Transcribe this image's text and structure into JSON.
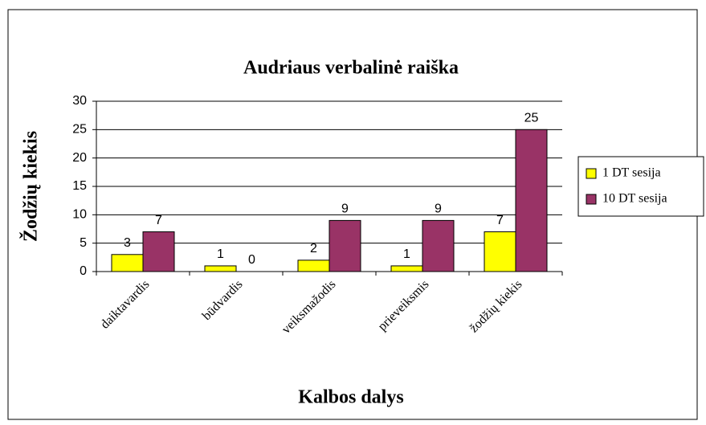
{
  "chart_data": {
    "type": "bar",
    "title": "Audriaus verbalinė raiška",
    "x_label": "Kalbos dalys",
    "y_label": "Žodžių kiekis",
    "categories": [
      "daiktavardis",
      "būdvardis",
      "veiksmažodis",
      "prieveiksmis",
      "žodžių kiekis"
    ],
    "series": [
      {
        "name": "1 DT sesija",
        "color": "#ffff00",
        "values": [
          3,
          1,
          2,
          1,
          7
        ]
      },
      {
        "name": "10 DT sesija",
        "color": "#993366",
        "values": [
          7,
          0,
          9,
          9,
          25
        ]
      }
    ],
    "ylim": [
      0,
      30
    ],
    "yticks": [
      0,
      5,
      10,
      15,
      20,
      25,
      30
    ],
    "grid": true,
    "legend": "right"
  }
}
